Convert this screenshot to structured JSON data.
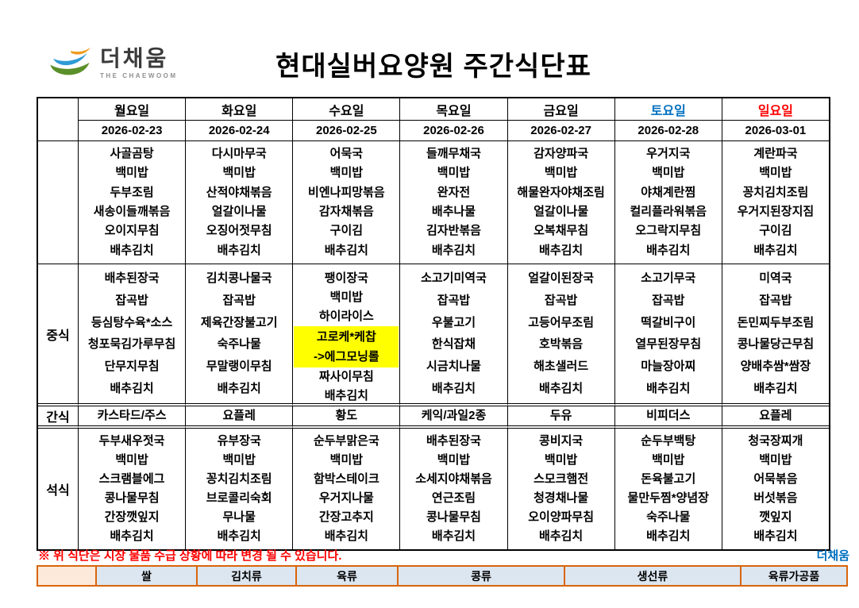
{
  "header": {
    "logo_name": "더채움",
    "logo_subtitle": "THE CHAEWOOM",
    "title": "현대실버요양원 주간식단표"
  },
  "week_table": {
    "day_headers": [
      {
        "label": "월요일",
        "date": "2026-02-23",
        "color": "#000000"
      },
      {
        "label": "화요일",
        "date": "2026-02-24",
        "color": "#000000"
      },
      {
        "label": "수요일",
        "date": "2026-02-25",
        "color": "#000000"
      },
      {
        "label": "목요일",
        "date": "2026-02-26",
        "color": "#000000"
      },
      {
        "label": "금요일",
        "date": "2026-02-27",
        "color": "#000000"
      },
      {
        "label": "토요일",
        "date": "2026-02-28",
        "color": "#0070C0"
      },
      {
        "label": "일요일",
        "date": "2026-03-01",
        "color": "#FF0000"
      }
    ],
    "sections": [
      {
        "id": "breakfast",
        "label": "",
        "menus": [
          [
            "사골곰탕",
            "백미밥",
            "두부조림",
            "새송이들깨볶음",
            "오이지무침",
            "배추김치"
          ],
          [
            "다시마무국",
            "백미밥",
            "산적야채볶음",
            "얼갈이나물",
            "오징어젓무침",
            "배추김치"
          ],
          [
            "어묵국",
            "백미밥",
            "비엔나피망볶음",
            "감자채볶음",
            "구이김",
            "배추김치"
          ],
          [
            "들깨무채국",
            "백미밥",
            "완자전",
            "배추나물",
            "김자반볶음",
            "배추김치"
          ],
          [
            "감자양파국",
            "백미밥",
            "해물완자야채조림",
            "얼갈이나물",
            "오복채무침",
            "배추김치"
          ],
          [
            "우거지국",
            "백미밥",
            "야채계란찜",
            "컬리플라워볶음",
            "오그락지무침",
            "배추김치"
          ],
          [
            "계란파국",
            "백미밥",
            "꽁치김치조림",
            "우거지된장지짐",
            "구이김",
            "배추김치"
          ]
        ]
      },
      {
        "id": "lunch",
        "label": "중식",
        "menus": [
          [
            "배추된장국",
            "잡곡밥",
            "등심탕수육*소스",
            "청포묵김가루무침",
            "단무지무침",
            "배추김치"
          ],
          [
            "김치콩나물국",
            "잡곡밥",
            "제육간장불고기",
            "숙주나물",
            "무말랭이무침",
            "배추김치"
          ],
          [
            "팽이장국",
            "백미밥",
            "하이라이스",
            {
              "highlight": true,
              "lines": [
                "고로케*케찹",
                "->에그모닝롤"
              ]
            },
            "짜사이무침",
            "배추김치"
          ],
          [
            "소고기미역국",
            "잡곡밥",
            "우불고기",
            "한식잡채",
            "시금치나물",
            "배추김치"
          ],
          [
            "얼갈이된장국",
            "잡곡밥",
            "고등어무조림",
            "호박볶음",
            "해초샐러드",
            "배추김치"
          ],
          [
            "소고기무국",
            "잡곡밥",
            "떡갈비구이",
            "열무된장무침",
            "마늘장아찌",
            "배추김치"
          ],
          [
            "미역국",
            "잡곡밥",
            "돈민찌두부조림",
            "콩나물당근무침",
            "양배추쌈*쌈장",
            "배추김치"
          ]
        ]
      },
      {
        "id": "snack",
        "label": "간식",
        "menus": [
          [
            "카스타드/주스"
          ],
          [
            "요플레"
          ],
          [
            "황도"
          ],
          [
            "케익/과일2종"
          ],
          [
            "두유"
          ],
          [
            "비피더스"
          ],
          [
            "요플레"
          ]
        ]
      },
      {
        "id": "dinner",
        "label": "석식",
        "menus": [
          [
            "두부새우젓국",
            "백미밥",
            "스크램블에그",
            "콩나물무침",
            "간장깻잎지",
            "배추김치"
          ],
          [
            "유부장국",
            "백미밥",
            "꽁치김치조림",
            "브로콜리숙회",
            "무나물",
            "배추김치"
          ],
          [
            "순두부맑은국",
            "백미밥",
            "함박스테이크",
            "우거지나물",
            "간장고추지",
            "배추김치"
          ],
          [
            "배추된장국",
            "백미밥",
            "소세지야채볶음",
            "연근조림",
            "콩나물무침",
            "배추김치"
          ],
          [
            "콩비지국",
            "백미밥",
            "스모크햄전",
            "청경채나물",
            "오이양파무침",
            "배추김치"
          ],
          [
            "순두부백탕",
            "백미밥",
            "돈육불고기",
            "물만두찜*양념장",
            "숙주나물",
            "배추김치"
          ],
          [
            "청국장찌개",
            "백미밥",
            "어묵볶음",
            "버섯볶음",
            "깻잎지",
            "배추김치"
          ]
        ]
      }
    ],
    "highlight_color": "#FFFF00"
  },
  "footer": {
    "note": "※ 위 식단은 시장 물품 수급 상황에 따라 변경 될 수 있습니다.",
    "note_color": "#FF0000",
    "brand": "더채움",
    "brand_color": "#0070C0"
  },
  "legend": {
    "labels": [
      "쌀",
      "김치류",
      "육류",
      "콩류",
      "생선류",
      "육류가공품"
    ],
    "cell_bg": "#DCE6F1",
    "first_cell_bg": "#FDE9D9",
    "border_color": "#D9650B"
  }
}
